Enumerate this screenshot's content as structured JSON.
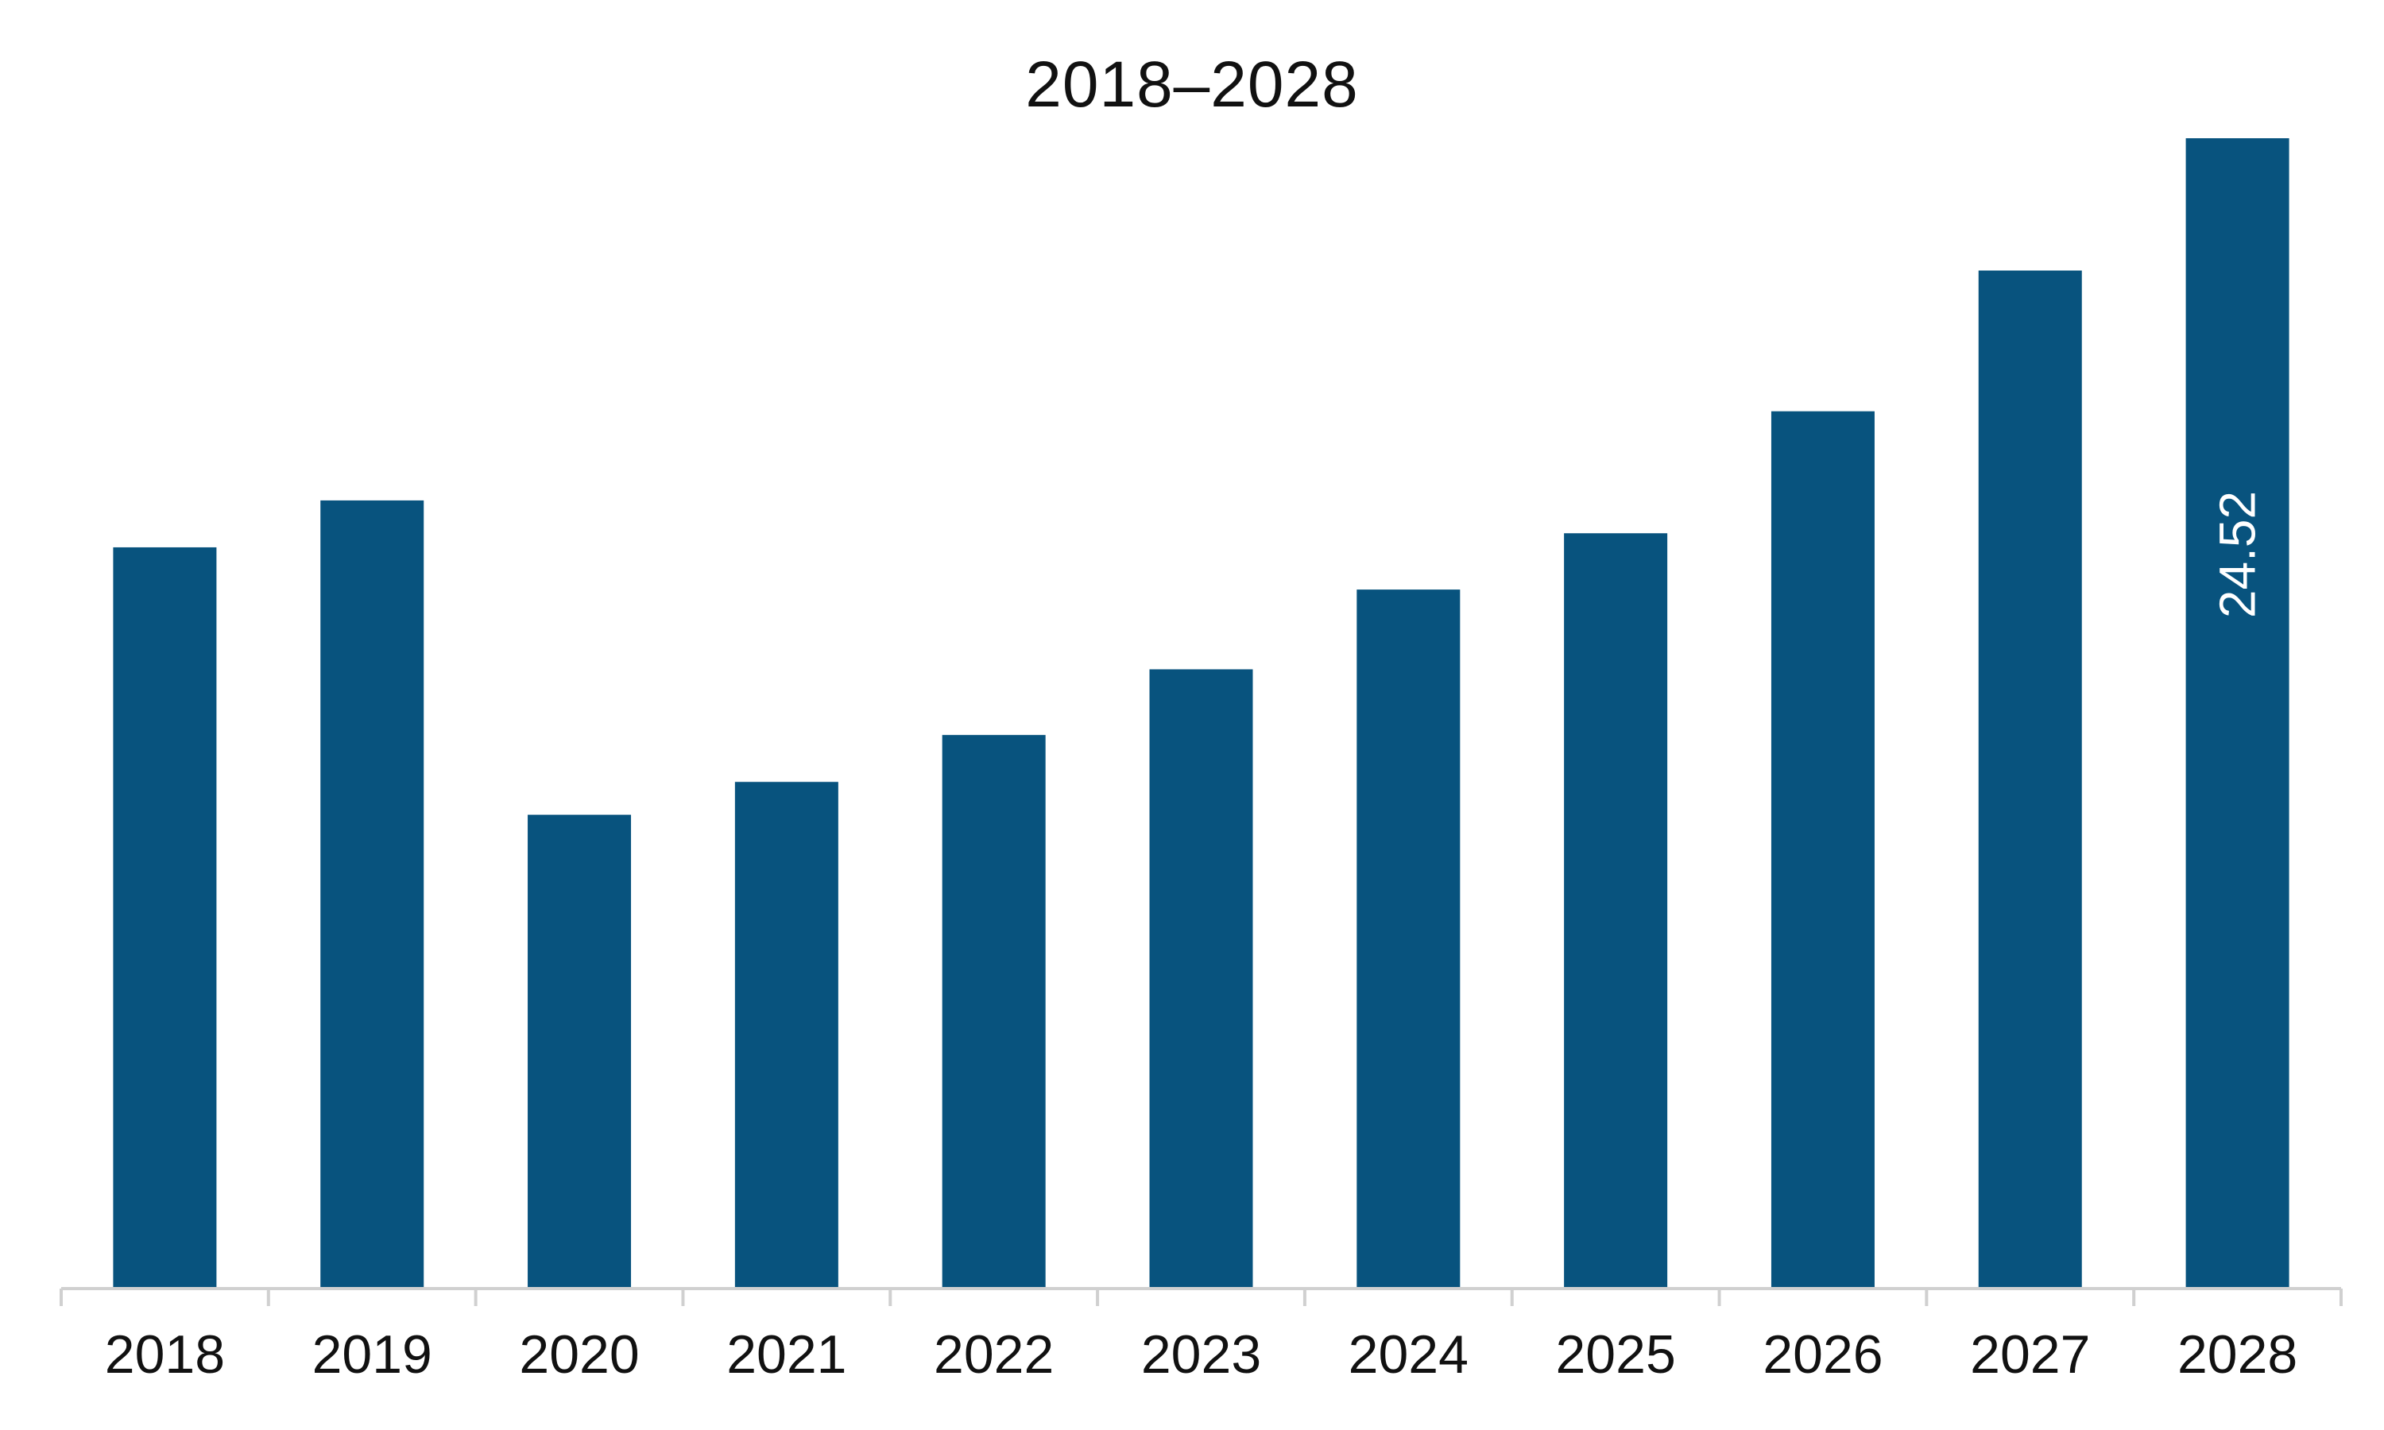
{
  "chart_data": {
    "type": "bar",
    "title": "2018–2028",
    "xlabel": "",
    "ylabel": "",
    "categories": [
      "2018",
      "2019",
      "2020",
      "2021",
      "2022",
      "2023",
      "2024",
      "2025",
      "2026",
      "2027",
      "2028"
    ],
    "values": [
      15.8,
      16.8,
      10.1,
      10.8,
      11.8,
      13.2,
      14.9,
      16.1,
      18.7,
      21.7,
      24.52
    ],
    "data_labels": [
      null,
      null,
      null,
      null,
      null,
      null,
      null,
      null,
      null,
      null,
      "24.52"
    ],
    "ylim": [
      0,
      24.52
    ],
    "grid": false,
    "legend": "none",
    "colors": {
      "bar": "#08537E",
      "axis": "#d0d0d0",
      "text": "#111111",
      "label": "#ffffff"
    }
  }
}
